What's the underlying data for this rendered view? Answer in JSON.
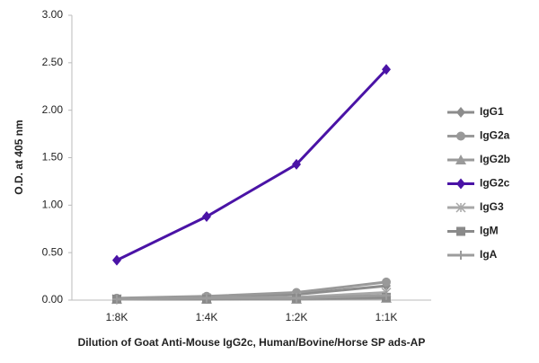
{
  "chart_data": {
    "type": "line",
    "xlabel": "Dilution of Goat Anti-Mouse IgG2c, Human/Bovine/Horse SP ads-AP",
    "ylabel": "O.D. at 405 nm",
    "categories": [
      "1:8K",
      "1:4K",
      "1:2K",
      "1:1K"
    ],
    "ylim": [
      0,
      3
    ],
    "yticks": [
      {
        "value": 0,
        "label": "0.00"
      },
      {
        "value": 0.5,
        "label": "0.50"
      },
      {
        "value": 1,
        "label": "1.00"
      },
      {
        "value": 1.5,
        "label": "1.50"
      },
      {
        "value": 2,
        "label": "2.00"
      },
      {
        "value": 2.5,
        "label": "2.50"
      },
      {
        "value": 3,
        "label": "3.00"
      }
    ],
    "grid": false,
    "legend": "right",
    "series": [
      {
        "name": "IgG1",
        "color": "#8c8c8c",
        "marker": "diamond",
        "values": [
          0.01,
          0.03,
          0.06,
          0.15
        ]
      },
      {
        "name": "IgG2a",
        "color": "#999999",
        "marker": "circle",
        "values": [
          0.02,
          0.04,
          0.08,
          0.19
        ]
      },
      {
        "name": "IgG2b",
        "color": "#9a9a9a",
        "marker": "triangle",
        "values": [
          0.01,
          0.01,
          0.01,
          0.02
        ]
      },
      {
        "name": "IgG2c",
        "color": "#4a13a6",
        "marker": "diamond",
        "values": [
          0.42,
          0.88,
          1.43,
          2.43
        ]
      },
      {
        "name": "IgG3",
        "color": "#a8a8a8",
        "marker": "asterisk",
        "values": [
          0.01,
          0.02,
          0.03,
          0.08
        ]
      },
      {
        "name": "IgM",
        "color": "#8a8a8a",
        "marker": "square",
        "values": [
          0.01,
          0.01,
          0.02,
          0.03
        ]
      },
      {
        "name": "IgA",
        "color": "#9c9c9c",
        "marker": "plus",
        "values": [
          0.01,
          0.02,
          0.02,
          0.05
        ]
      }
    ]
  }
}
